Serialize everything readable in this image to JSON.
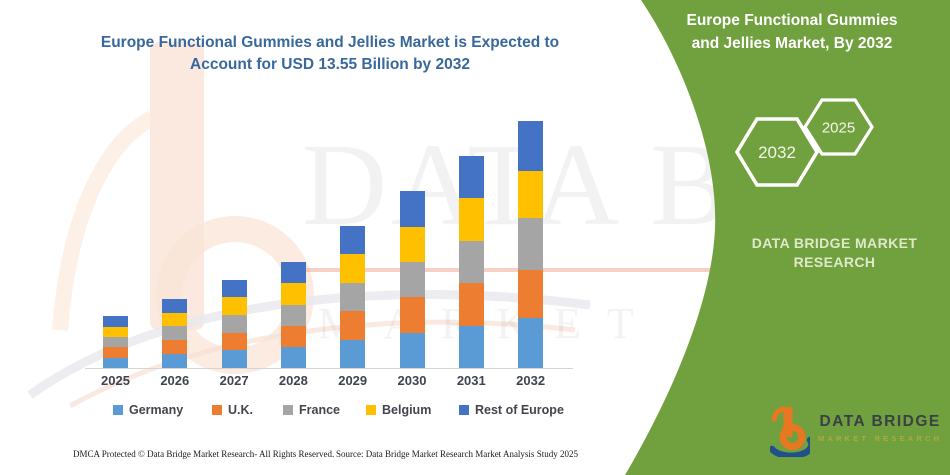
{
  "header": {
    "title_line1": "Europe Functional Gummies and Jellies Market is Expected to",
    "title_line2": "Account for USD 13.55 Billion by 2032",
    "title_color": "#38689C"
  },
  "chart_data": {
    "type": "bar",
    "stacked": true,
    "title": "Europe Functional Gummies and Jellies Market is Expected to Account for USD 13.55 Billion by 2032",
    "unit": "USD Billion",
    "categories": [
      "2025",
      "2026",
      "2027",
      "2028",
      "2029",
      "2030",
      "2031",
      "2032"
    ],
    "series": [
      {
        "name": "Germany",
        "color": "#5B9BD5",
        "values": [
          0.57,
          0.76,
          0.97,
          1.16,
          1.56,
          1.94,
          2.33,
          2.74
        ]
      },
      {
        "name": "U.K.",
        "color": "#ED7D31",
        "values": [
          0.57,
          0.76,
          0.97,
          1.16,
          1.56,
          1.94,
          2.33,
          2.65
        ]
      },
      {
        "name": "France",
        "color": "#A5A5A5",
        "values": [
          0.57,
          0.76,
          0.97,
          1.16,
          1.56,
          1.94,
          2.33,
          2.84
        ]
      },
      {
        "name": "Belgium",
        "color": "#FFC000",
        "values": [
          0.57,
          0.76,
          0.97,
          1.16,
          1.56,
          1.94,
          2.33,
          2.56
        ]
      },
      {
        "name": "Rest of Europe",
        "color": "#4472C4",
        "values": [
          0.57,
          0.76,
          0.97,
          1.16,
          1.56,
          1.94,
          2.33,
          2.76
        ]
      }
    ],
    "totals": [
      2.85,
      3.8,
      4.85,
      5.8,
      7.8,
      9.7,
      11.65,
      13.55
    ],
    "ylim": [
      0,
      13.55
    ],
    "grid": false,
    "legend_position": "bottom",
    "xlabel": "",
    "ylabel": ""
  },
  "side_panel": {
    "bg_color": "#71A03E",
    "title_line1": "Europe Functional Gummies",
    "title_line2": "and Jellies Market, By 2032",
    "hexagon_back_label": "2025",
    "hexagon_front_label": "2032",
    "brand_line1": "DATA BRIDGE MARKET",
    "brand_line2": "RESEARCH"
  },
  "logo": {
    "name": "DATA BRIDGE",
    "subtitle": "MARKET RESEARCH"
  },
  "watermark": {
    "line1": "DATA BRIDGE",
    "line2": "MARKET RESEARCH"
  },
  "footer": {
    "left": "DMCA Protected © Data Bridge Market Research-  All Rights Reserved.",
    "right": "Source: Data Bridge Market Research  Market Analysis Study 2025"
  }
}
